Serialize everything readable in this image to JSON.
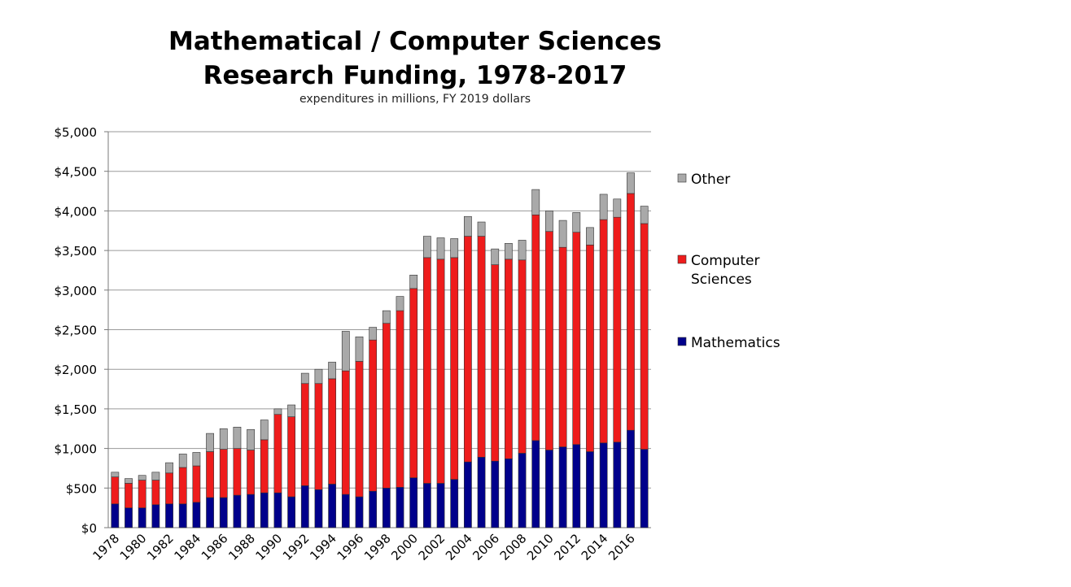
{
  "title_line1": "Mathematical / Computer Sciences",
  "title_line2": "Research Funding, 1978-2017",
  "subtitle": "expenditures in millions, FY 2019 dollars",
  "chart_data": {
    "type": "bar",
    "stacked": true,
    "title": "Mathematical / Computer Sciences Research Funding, 1978-2017",
    "subtitle": "expenditures in millions, FY 2019 dollars",
    "xlabel": "",
    "ylabel": "",
    "ylim": [
      0,
      5000
    ],
    "yticks": [
      0,
      500,
      1000,
      1500,
      2000,
      2500,
      3000,
      3500,
      4000,
      4500,
      5000
    ],
    "ytick_labels": [
      "$0",
      "$500",
      "$1,000",
      "$1,500",
      "$2,000",
      "$2,500",
      "$3,000",
      "$3,500",
      "$4,000",
      "$4,500",
      "$5,000"
    ],
    "grid": true,
    "legend_position": "right",
    "categories": [
      1978,
      1979,
      1980,
      1981,
      1982,
      1983,
      1984,
      1985,
      1986,
      1987,
      1988,
      1989,
      1990,
      1991,
      1992,
      1993,
      1994,
      1995,
      1996,
      1997,
      1998,
      1999,
      2000,
      2001,
      2002,
      2003,
      2004,
      2005,
      2006,
      2007,
      2008,
      2009,
      2010,
      2011,
      2012,
      2013,
      2014,
      2015,
      2016,
      2017
    ],
    "xtick_labels": [
      "1978",
      "1980",
      "1982",
      "1984",
      "1986",
      "1988",
      "1990",
      "1992",
      "1994",
      "1996",
      "1998",
      "2000",
      "2002",
      "2004",
      "2006",
      "2008",
      "2010",
      "2012",
      "2014",
      "2016"
    ],
    "series": [
      {
        "name": "Mathematics",
        "color": "#00008b",
        "values": [
          300,
          250,
          250,
          290,
          300,
          300,
          320,
          380,
          380,
          410,
          420,
          440,
          440,
          390,
          530,
          480,
          550,
          420,
          390,
          460,
          500,
          510,
          630,
          560,
          560,
          610,
          830,
          890,
          840,
          870,
          940,
          1100,
          980,
          1020,
          1050,
          960,
          1070,
          1080,
          1230,
          990
        ]
      },
      {
        "name": "Computer Sciences",
        "color": "#ee1c1c",
        "values": [
          340,
          310,
          350,
          310,
          390,
          460,
          460,
          580,
          610,
          590,
          560,
          670,
          990,
          1010,
          1290,
          1340,
          1330,
          1560,
          1710,
          1910,
          2080,
          2230,
          2390,
          2850,
          2830,
          2800,
          2850,
          2790,
          2480,
          2520,
          2440,
          2850,
          2760,
          2520,
          2680,
          2610,
          2820,
          2840,
          2990,
          2850
        ]
      },
      {
        "name": "Other",
        "color": "#a9a9a9",
        "values": [
          60,
          60,
          60,
          100,
          130,
          170,
          170,
          230,
          260,
          270,
          260,
          250,
          70,
          150,
          130,
          180,
          210,
          500,
          310,
          160,
          160,
          180,
          170,
          270,
          270,
          240,
          250,
          180,
          200,
          200,
          250,
          320,
          260,
          340,
          250,
          220,
          320,
          230,
          260,
          220
        ]
      }
    ]
  }
}
